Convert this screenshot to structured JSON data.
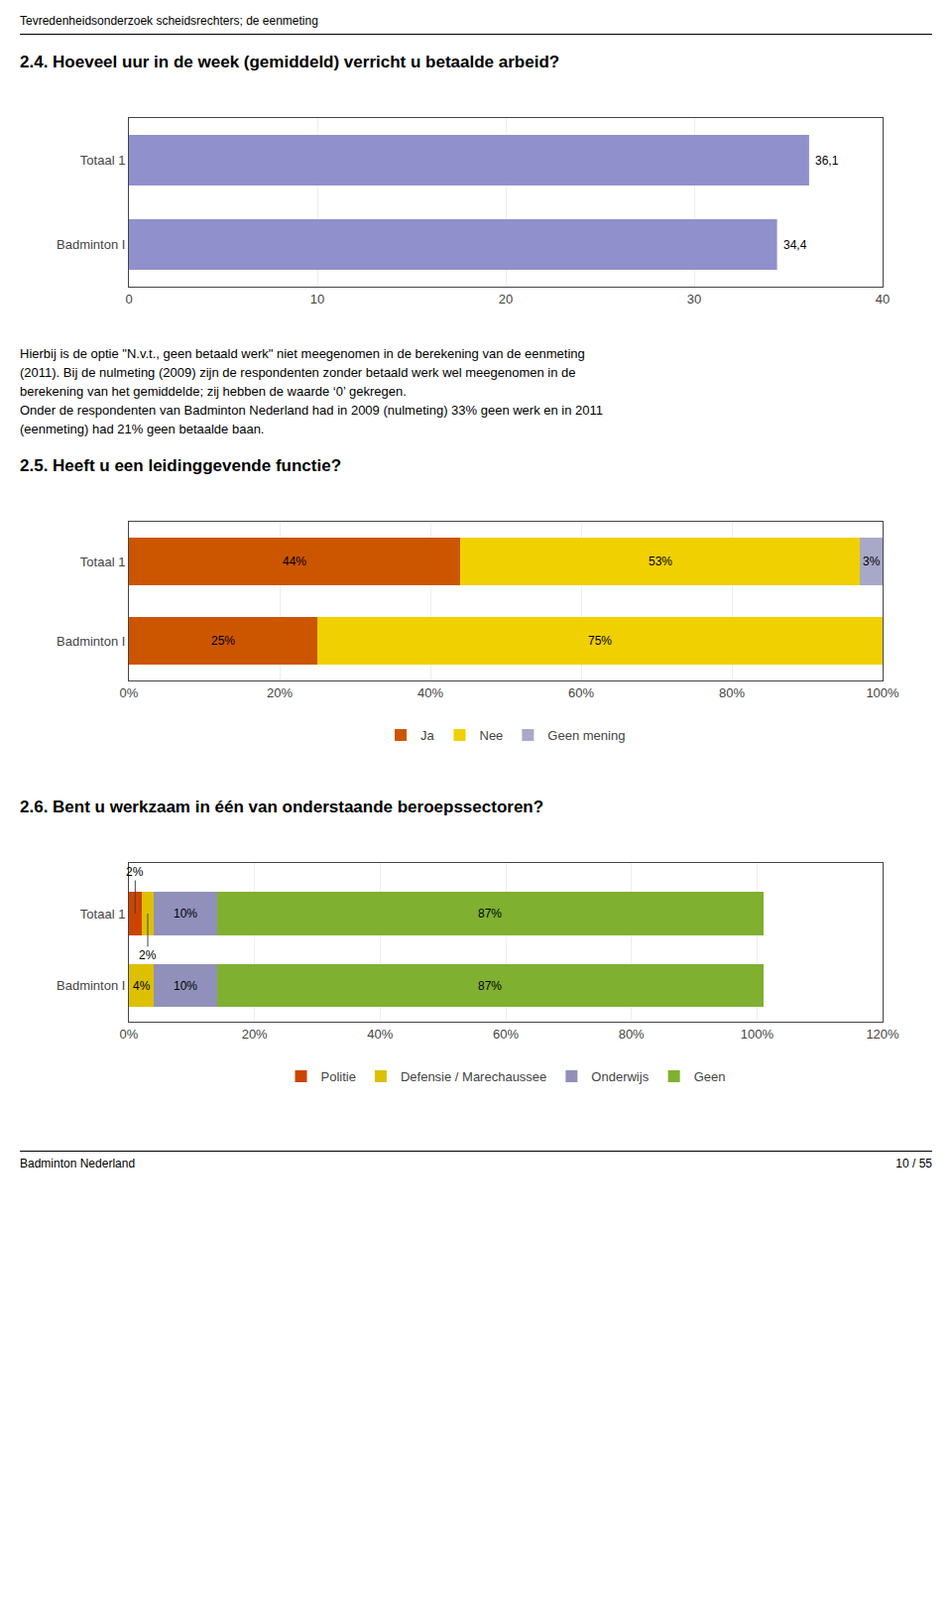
{
  "title": "Tevredenheidsonderzoek scheidsrechters; de eenmeting",
  "annotations": [
    "Badminton Nederland",
    "10 / 55"
  ],
  "chart_data": [
    {
      "type": "bar",
      "orientation": "horizontal",
      "title": "2.4. Hoeveel uur in de week (gemiddeld) verricht u betaalde arbeid?",
      "categories": [
        "Totaal 1",
        "Badminton I"
      ],
      "values": [
        36.1,
        34.4
      ],
      "value_labels": [
        "36,1",
        "34,4"
      ],
      "data_labels": true,
      "color": "#9090cc",
      "xlim": [
        0,
        40
      ],
      "xticks": [
        0,
        10,
        20,
        30,
        40
      ],
      "grid": true,
      "annotations": [
        "Hierbij is de optie \"N.v.t., geen betaald werk\" niet meegenomen in de berekening van de eenmeting",
        "(2011). Bij de nulmeting (2009) zijn de respondenten zonder betaald werk wel meegenomen in de",
        "berekening van het gemiddelde; zij hebben de waarde ‘0’ gekregen.",
        "Onder de respondenten van Badminton Nederland had in 2009 (nulmeting) 33% geen werk en in 2011",
        "(eenmeting) had 21% geen betaalde baan."
      ]
    },
    {
      "type": "bar",
      "orientation": "horizontal",
      "stacked": true,
      "title": "2.5. Heeft u een leidinggevende functie?",
      "categories": [
        "Totaal 1",
        "Badminton I"
      ],
      "series": [
        {
          "name": "Ja",
          "color": "#cc5500",
          "values": [
            44,
            25
          ],
          "value_labels": [
            "44%",
            "25%"
          ]
        },
        {
          "name": "Nee",
          "color": "#f0d000",
          "values": [
            53,
            75
          ],
          "value_labels": [
            "53%",
            "75%"
          ]
        },
        {
          "name": "Geen mening",
          "color": "#a8a8c8",
          "values": [
            3,
            0
          ],
          "value_labels": [
            "3%",
            null
          ]
        }
      ],
      "data_labels": true,
      "xlim": [
        0,
        100
      ],
      "xticks": [
        {
          "value": 0,
          "label": "0%"
        },
        {
          "value": 20,
          "label": "20%"
        },
        {
          "value": 40,
          "label": "40%"
        },
        {
          "value": 60,
          "label": "60%"
        },
        {
          "value": 80,
          "label": "80%"
        },
        {
          "value": 100,
          "label": "100%"
        }
      ],
      "grid": true,
      "legend": "bottom"
    },
    {
      "type": "bar",
      "orientation": "horizontal",
      "stacked": true,
      "title": "2.6. Bent u werkzaam in één van onderstaande beroepssectoren?",
      "categories": [
        "Totaal 1",
        "Badminton I"
      ],
      "series": [
        {
          "name": "Politie",
          "color": "#cc4400",
          "values": [
            2,
            0
          ],
          "value_labels": [
            "2%",
            null
          ]
        },
        {
          "name": "Defensie / Marechaussee",
          "color": "#ddc000",
          "values": [
            2,
            4
          ],
          "value_labels": [
            "2%",
            "4%"
          ]
        },
        {
          "name": "Onderwijs",
          "color": "#9090bb",
          "values": [
            10,
            10
          ],
          "value_labels": [
            "10%",
            "10%"
          ]
        },
        {
          "name": "Geen",
          "color": "#80b030",
          "values": [
            87,
            87
          ],
          "value_labels": [
            "87%",
            "87%"
          ]
        }
      ],
      "data_labels": true,
      "xlim": [
        0,
        120
      ],
      "xticks": [
        {
          "value": 0,
          "label": "0%"
        },
        {
          "value": 20,
          "label": "20%"
        },
        {
          "value": 40,
          "label": "40%"
        },
        {
          "value": 60,
          "label": "60%"
        },
        {
          "value": 80,
          "label": "80%"
        },
        {
          "value": 100,
          "label": "100%"
        },
        {
          "value": 120,
          "label": "120%"
        }
      ],
      "grid": true,
      "legend": "bottom"
    }
  ]
}
